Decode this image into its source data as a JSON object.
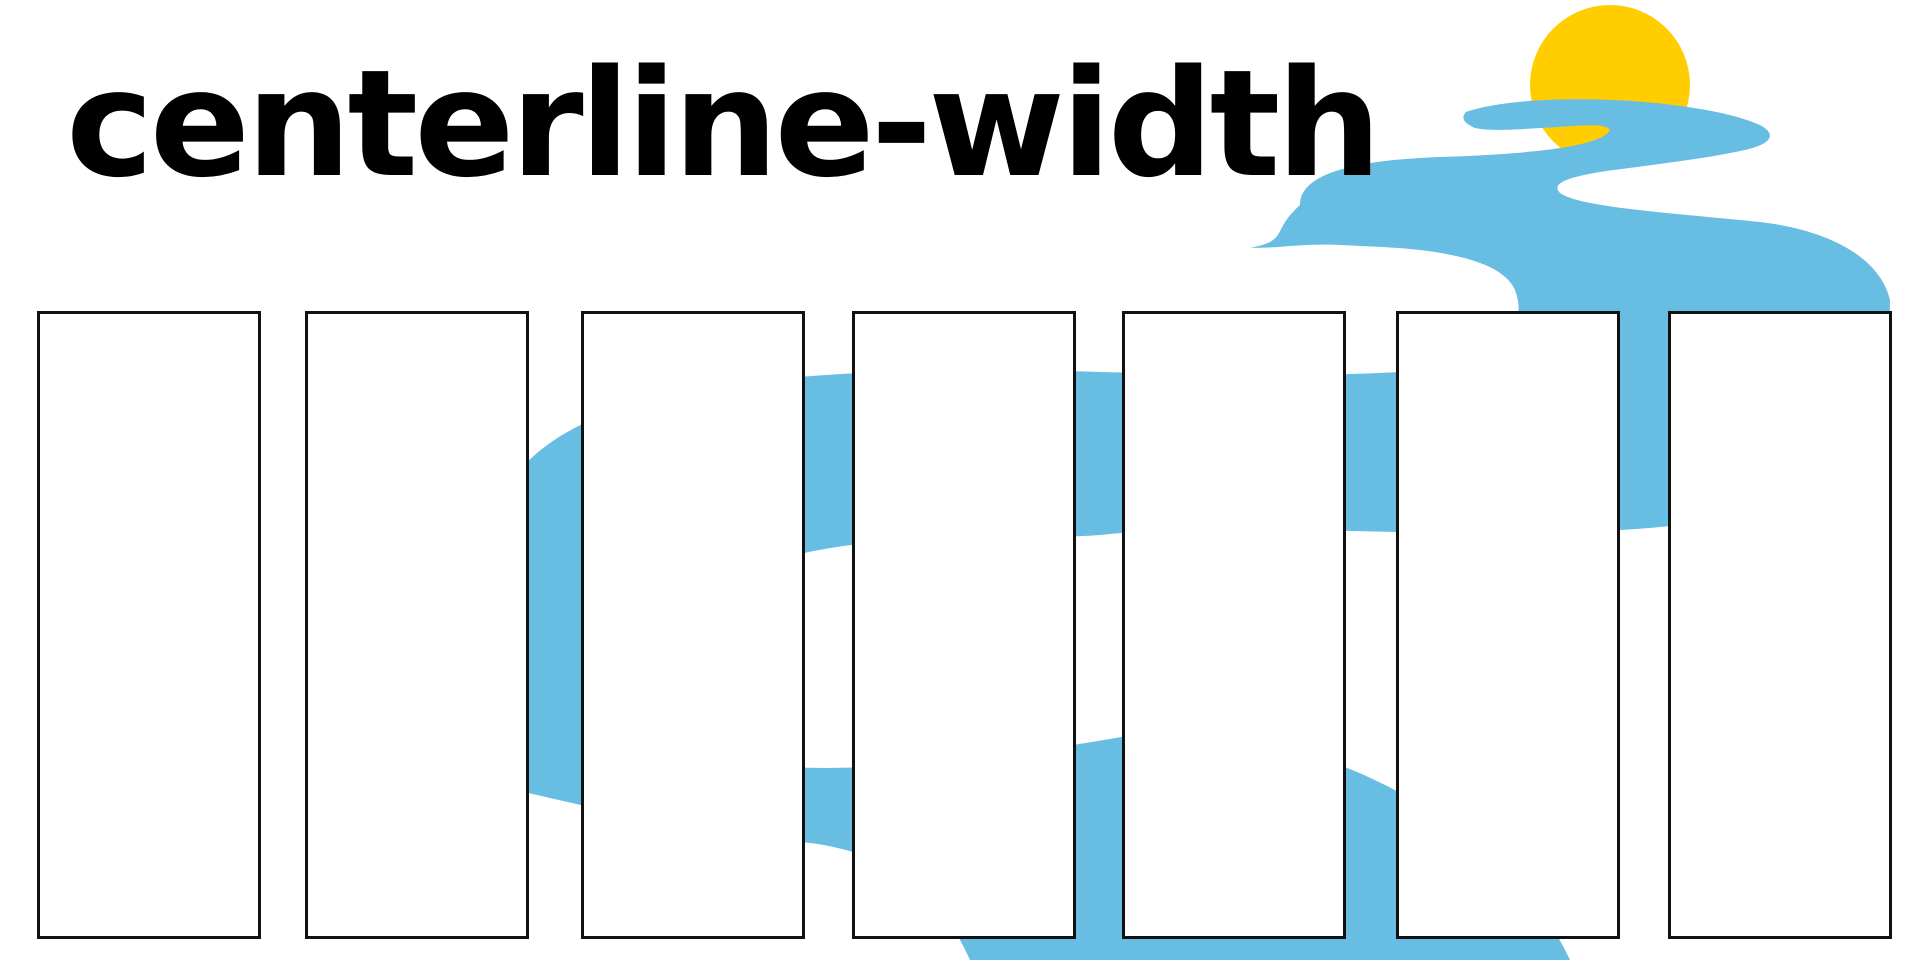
{
  "title": "centerline-width",
  "colors": {
    "river": "#68bde3",
    "sun": "#ffcd00",
    "panel_border": "#111111",
    "background": "#ffffff",
    "text": "#000000"
  },
  "panels": [
    {
      "id": "panel-1"
    },
    {
      "id": "panel-2"
    },
    {
      "id": "panel-3"
    },
    {
      "id": "panel-4"
    },
    {
      "id": "panel-5"
    },
    {
      "id": "panel-6"
    },
    {
      "id": "panel-7"
    }
  ]
}
